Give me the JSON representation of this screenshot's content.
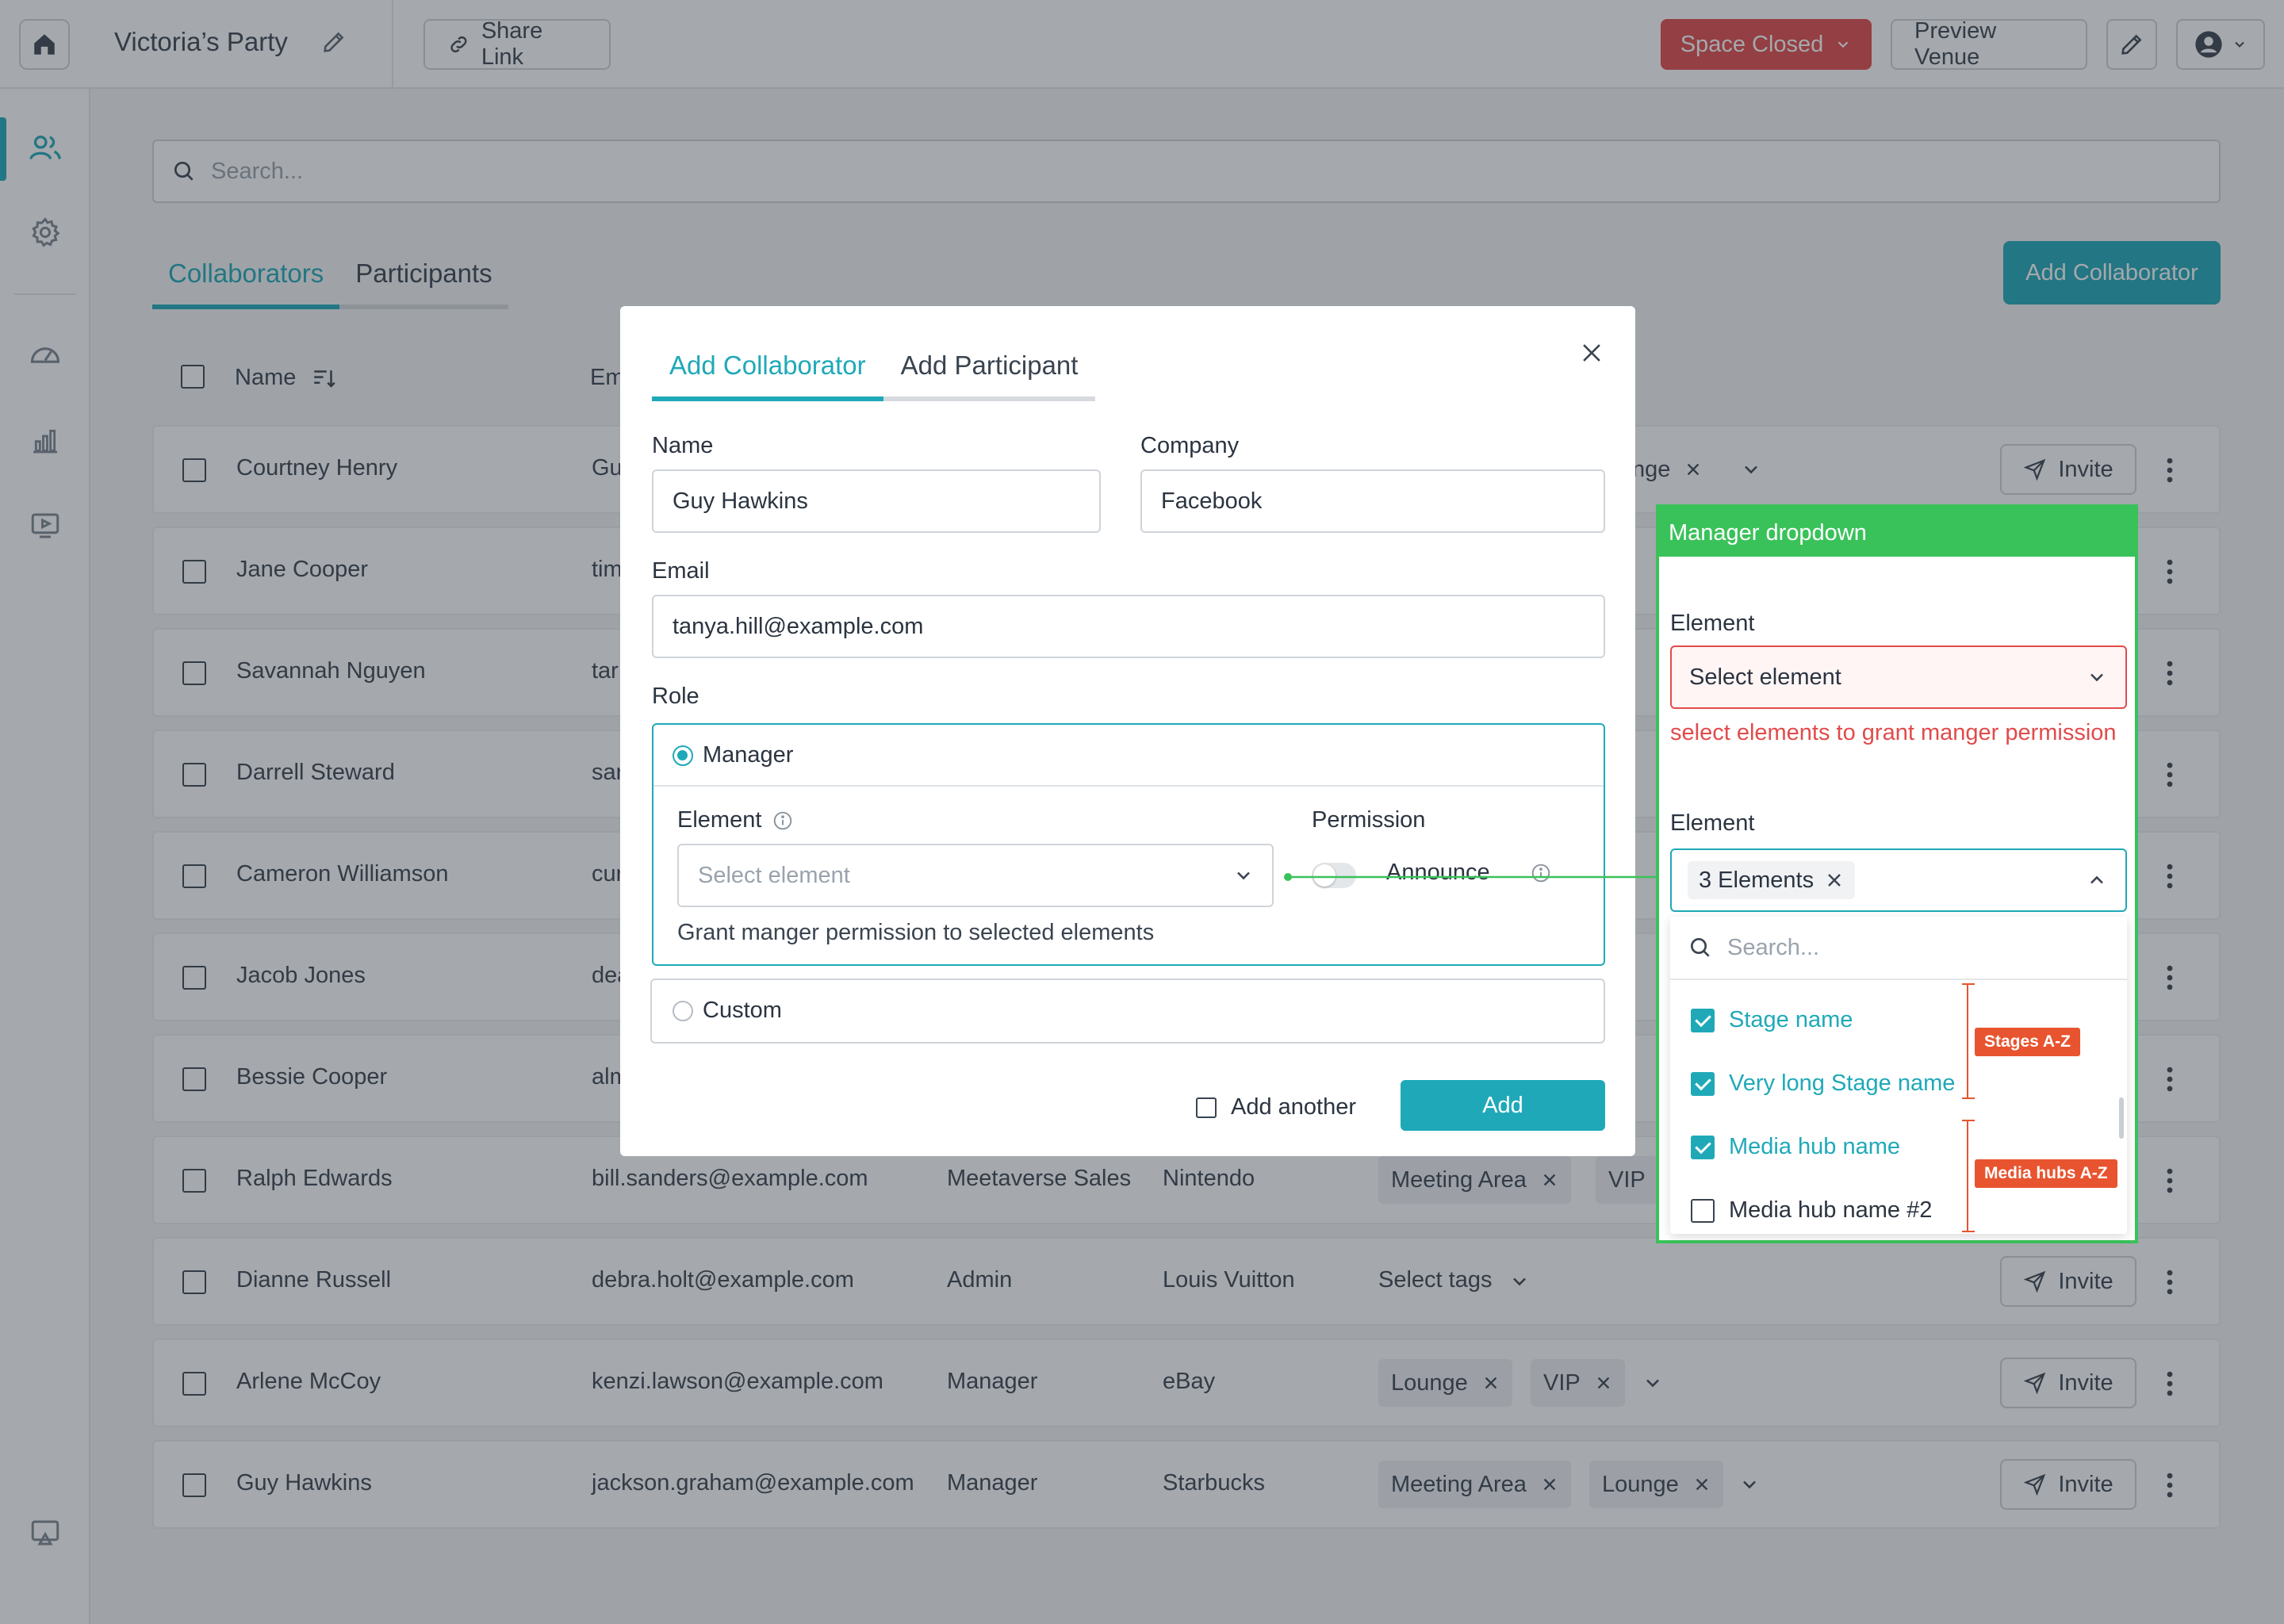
{
  "topbar": {
    "title": "Victoria’s Party",
    "share_label": "Share Link",
    "space_status": "Space Closed",
    "preview_label": "Preview Venue"
  },
  "search": {
    "placeholder": "Search..."
  },
  "tabs": [
    "Collaborators",
    "Participants"
  ],
  "add_collaborator_label": "Add Collaborator",
  "table": {
    "columns": [
      "Name",
      "Em"
    ],
    "rows": [
      {
        "name": "Courtney Henry",
        "email": "Gu",
        "role": "",
        "company": "",
        "tags": [
          "nge"
        ],
        "invite": "Invite"
      },
      {
        "name": "Jane Cooper",
        "email": "tim",
        "role": "",
        "company": "",
        "tags": [],
        "invite": ""
      },
      {
        "name": "Savannah Nguyen",
        "email": "tar",
        "role": "",
        "company": "",
        "tags": [],
        "invite": ""
      },
      {
        "name": "Darrell Steward",
        "email": "sar",
        "role": "",
        "company": "",
        "tags": [],
        "invite": ""
      },
      {
        "name": "Cameron Williamson",
        "email": "cur",
        "role": "",
        "company": "",
        "tags": [],
        "invite": ""
      },
      {
        "name": "Jacob Jones",
        "email": "dea",
        "role": "",
        "company": "",
        "tags": [],
        "invite": ""
      },
      {
        "name": "Bessie Cooper",
        "email": "alm",
        "role": "",
        "company": "",
        "tags": [],
        "invite": ""
      },
      {
        "name": "Ralph Edwards",
        "email": "bill.sanders@example.com",
        "role": "Meetaverse Sales",
        "company": "Nintendo",
        "tags": [
          "Meeting Area",
          "VIP"
        ],
        "invite": ""
      },
      {
        "name": "Dianne Russell",
        "email": "debra.holt@example.com",
        "role": "Admin",
        "company": "Louis Vuitton",
        "tags_placeholder": "Select tags",
        "invite": "Invite"
      },
      {
        "name": "Arlene McCoy",
        "email": "kenzi.lawson@example.com",
        "role": "Manager",
        "company": "eBay",
        "tags": [
          "Lounge",
          "VIP"
        ],
        "invite": "Invite"
      },
      {
        "name": "Guy Hawkins",
        "email": "jackson.graham@example.com",
        "role": "Manager",
        "company": "Starbucks",
        "tags": [
          "Meeting Area",
          "Lounge"
        ],
        "invite": "Invite"
      }
    ]
  },
  "modal": {
    "tabs": [
      "Add Collaborator",
      "Add Participant"
    ],
    "name_label": "Name",
    "name_value": "Guy Hawkins",
    "company_label": "Company",
    "company_value": "Facebook",
    "email_label": "Email",
    "email_value": "tanya.hill@example.com",
    "role_label": "Role",
    "role_manager": "Manager",
    "element_label": "Element",
    "element_placeholder": "Select element",
    "element_help": "Grant manger permission to selected elements",
    "permission_label": "Permission",
    "permission_toggle": "Announce",
    "role_custom": "Custom",
    "add_another": "Add another",
    "add_button": "Add"
  },
  "annotation": {
    "title": "Manager dropdown",
    "element_label_1": "Element",
    "select_placeholder": "Select element",
    "error_text": "select elements to grant manger permission",
    "element_label_2": "Element",
    "chip_label": "3 Elements",
    "search_placeholder": "Search...",
    "items": [
      {
        "label": "Stage name",
        "checked": true
      },
      {
        "label": "Very long Stage name",
        "checked": true
      },
      {
        "label": "Media hub name",
        "checked": true
      },
      {
        "label": "Media hub name #2",
        "checked": false
      }
    ],
    "badge_stages": "Stages A-Z",
    "badge_media": "Media hubs A-Z"
  },
  "colors": {
    "accent": "#1fa9b8",
    "danger": "#e14b4b",
    "annotation": "#3ac25a",
    "badge": "#e8542f"
  }
}
